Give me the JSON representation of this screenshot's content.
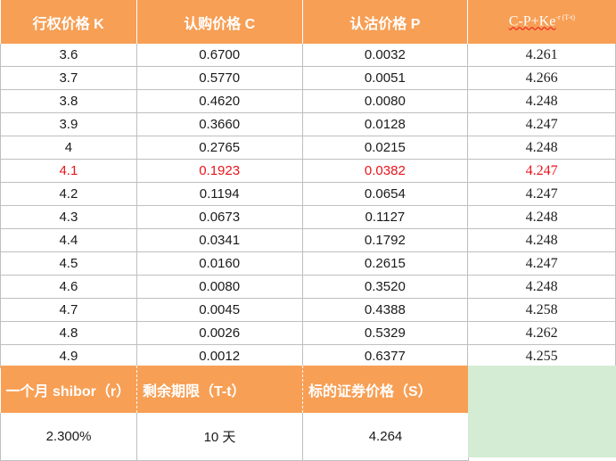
{
  "header": {
    "col_k": "行权价格 K",
    "col_c": "认购价格 C",
    "col_p": "认沽价格 P",
    "col_formula_main": "C-P+Ke",
    "col_formula_sup": "-r (T-t)"
  },
  "rows": [
    {
      "k": "3.6",
      "c": "0.6700",
      "p": "0.0032",
      "v": "4.261"
    },
    {
      "k": "3.7",
      "c": "0.5770",
      "p": "0.0051",
      "v": "4.266"
    },
    {
      "k": "3.8",
      "c": "0.4620",
      "p": "0.0080",
      "v": "4.248"
    },
    {
      "k": "3.9",
      "c": "0.3660",
      "p": "0.0128",
      "v": "4.247"
    },
    {
      "k": "4",
      "c": "0.2765",
      "p": "0.0215",
      "v": "4.248"
    },
    {
      "k": "4.1",
      "c": "0.1923",
      "p": "0.0382",
      "v": "4.247"
    },
    {
      "k": "4.2",
      "c": "0.1194",
      "p": "0.0654",
      "v": "4.247"
    },
    {
      "k": "4.3",
      "c": "0.0673",
      "p": "0.1127",
      "v": "4.248"
    },
    {
      "k": "4.4",
      "c": "0.0341",
      "p": "0.1792",
      "v": "4.248"
    },
    {
      "k": "4.5",
      "c": "0.0160",
      "p": "0.2615",
      "v": "4.247"
    },
    {
      "k": "4.6",
      "c": "0.0080",
      "p": "0.3520",
      "v": "4.248"
    },
    {
      "k": "4.7",
      "c": "0.0045",
      "p": "0.4388",
      "v": "4.258"
    },
    {
      "k": "4.8",
      "c": "0.0026",
      "p": "0.5329",
      "v": "4.262"
    },
    {
      "k": "4.9",
      "c": "0.0012",
      "p": "0.6377",
      "v": "4.255"
    }
  ],
  "highlight_row_k": "4.1",
  "params": {
    "shibor_label": "一个月 shibor（r）",
    "remaining_label": "剩余期限（T-t）",
    "price_label": "标的证券价格（S）",
    "shibor_value": "2.300%",
    "remaining_value": "10 天",
    "price_value": "4.264"
  },
  "colors": {
    "header_bg": "#f79f55",
    "highlight_text": "#e8141b",
    "green_box": "#d4ecd4"
  }
}
